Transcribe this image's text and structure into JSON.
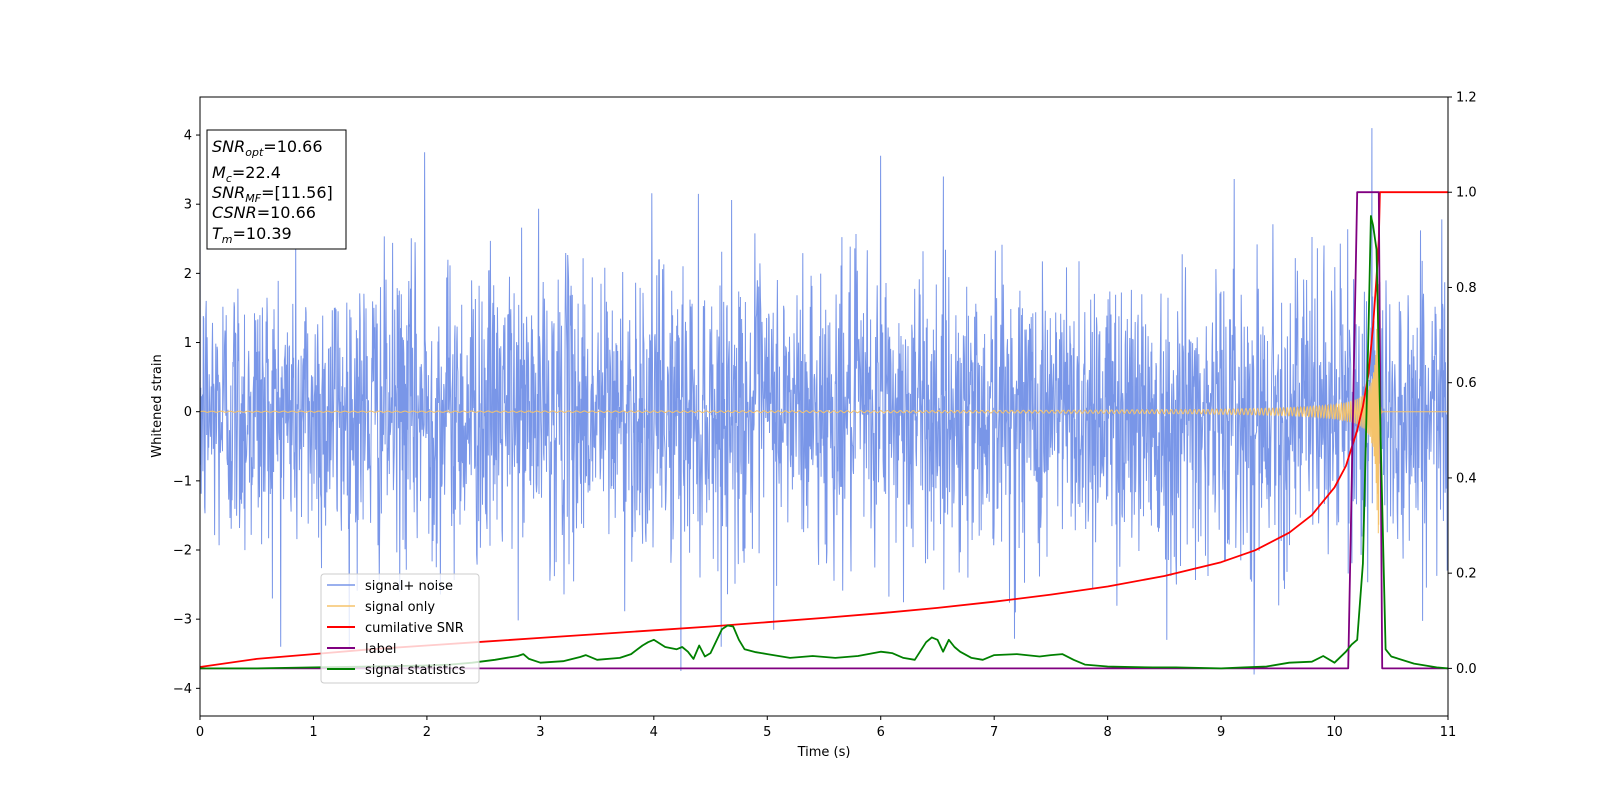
{
  "chart_data": {
    "type": "line",
    "title": "",
    "xlabel": "Time (s)",
    "ylabel": "Whitened strain",
    "y2label": "",
    "xlim": [
      0,
      11
    ],
    "ylim": [
      -4.4,
      4.55
    ],
    "y2lim": [
      -0.1,
      1.2
    ],
    "xticks": [
      "0",
      "1",
      "2",
      "3",
      "4",
      "5",
      "6",
      "7",
      "8",
      "9",
      "10",
      "11"
    ],
    "yticks": [
      "−4",
      "−3",
      "−2",
      "−1",
      "0",
      "1",
      "2",
      "3",
      "4"
    ],
    "y2ticks": [
      "0.0",
      "0.2",
      "0.4",
      "0.6",
      "0.8",
      "1.0",
      "1.2"
    ],
    "grid": false,
    "legend_position": "lower-left",
    "annotation": {
      "lines": [
        {
          "sym": "SNR",
          "sub": "opt",
          "val": "=10.66"
        },
        {
          "sym": "M",
          "sub": "c",
          "val": "=22.4"
        },
        {
          "sym": "SNR",
          "sub": "MF",
          "val": "=[11.56]"
        },
        {
          "sym": "CSNR",
          "sub": "",
          "val": "=10.66"
        },
        {
          "sym": "T",
          "sub": "m",
          "val": "=10.39"
        }
      ]
    },
    "series": [
      {
        "name": "signal+ noise",
        "axis": "left",
        "color": "#7996e8",
        "kind": "noise",
        "envelope_std": 1.0,
        "extremes": [
          [
            1.98,
            3.75
          ],
          [
            6.0,
            3.7
          ],
          [
            10.33,
            4.1
          ],
          [
            9.29,
            -3.8
          ],
          [
            4.24,
            -3.75
          ],
          [
            8.52,
            -3.3
          ]
        ]
      },
      {
        "name": "signal only",
        "axis": "left",
        "color": "#f5c36b",
        "kind": "chirp",
        "merger_time": 10.39,
        "peak_amplitude": 1.9
      },
      {
        "name": "cumilative SNR",
        "axis": "right",
        "color": "#ff0000",
        "x": [
          0,
          0.5,
          1,
          1.5,
          2,
          2.5,
          3,
          3.5,
          4,
          4.5,
          5,
          5.5,
          6,
          6.5,
          7,
          7.5,
          8,
          8.5,
          9,
          9.3,
          9.6,
          9.8,
          10.0,
          10.1,
          10.2,
          10.25,
          10.3,
          10.34,
          10.37,
          10.39,
          10.4,
          11
        ],
        "y": [
          0.003,
          0.02,
          0.03,
          0.04,
          0.048,
          0.056,
          0.064,
          0.072,
          0.08,
          0.088,
          0.097,
          0.106,
          0.116,
          0.127,
          0.14,
          0.155,
          0.172,
          0.194,
          0.223,
          0.248,
          0.285,
          0.322,
          0.38,
          0.425,
          0.5,
          0.55,
          0.62,
          0.72,
          0.82,
          0.9,
          1.0,
          1.0
        ]
      },
      {
        "name": "label",
        "axis": "right",
        "color": "#800080",
        "x": [
          0,
          10.12,
          10.2,
          10.39,
          10.42,
          11
        ],
        "y": [
          0,
          0,
          1.0,
          1.0,
          0,
          0
        ]
      },
      {
        "name": "signal statistics",
        "axis": "right",
        "color": "#008000",
        "x": [
          0,
          0.5,
          1,
          1.5,
          2,
          2.2,
          2.4,
          2.6,
          2.8,
          2.85,
          2.9,
          3.0,
          3.2,
          3.35,
          3.4,
          3.5,
          3.7,
          3.8,
          3.9,
          3.95,
          4.0,
          4.1,
          4.2,
          4.25,
          4.3,
          4.35,
          4.4,
          4.45,
          4.5,
          4.6,
          4.65,
          4.7,
          4.75,
          4.8,
          4.9,
          5.0,
          5.2,
          5.4,
          5.6,
          5.8,
          6.0,
          6.1,
          6.2,
          6.3,
          6.4,
          6.45,
          6.5,
          6.55,
          6.6,
          6.65,
          6.7,
          6.8,
          6.9,
          7.0,
          7.2,
          7.4,
          7.5,
          7.6,
          7.7,
          7.8,
          8.0,
          8.2,
          8.4,
          8.6,
          8.8,
          9.0,
          9.2,
          9.4,
          9.6,
          9.8,
          9.9,
          10.0,
          10.1,
          10.15,
          10.2,
          10.25,
          10.3,
          10.32,
          10.34,
          10.37,
          10.4,
          10.45,
          10.5,
          10.7,
          10.9,
          11
        ],
        "y": [
          0.0,
          0.0,
          0.002,
          0.004,
          0.006,
          0.008,
          0.012,
          0.018,
          0.026,
          0.03,
          0.02,
          0.012,
          0.015,
          0.024,
          0.028,
          0.018,
          0.022,
          0.03,
          0.048,
          0.055,
          0.06,
          0.045,
          0.04,
          0.045,
          0.035,
          0.02,
          0.048,
          0.025,
          0.032,
          0.082,
          0.09,
          0.088,
          0.06,
          0.04,
          0.034,
          0.03,
          0.022,
          0.026,
          0.022,
          0.026,
          0.035,
          0.032,
          0.022,
          0.018,
          0.055,
          0.065,
          0.06,
          0.035,
          0.06,
          0.045,
          0.035,
          0.022,
          0.018,
          0.028,
          0.03,
          0.025,
          0.028,
          0.03,
          0.018,
          0.008,
          0.004,
          0.003,
          0.002,
          0.002,
          0.001,
          0.0,
          0.002,
          0.004,
          0.012,
          0.014,
          0.026,
          0.012,
          0.035,
          0.05,
          0.06,
          0.22,
          0.72,
          0.95,
          0.93,
          0.88,
          0.55,
          0.04,
          0.025,
          0.01,
          0.002,
          0.0
        ]
      }
    ]
  }
}
